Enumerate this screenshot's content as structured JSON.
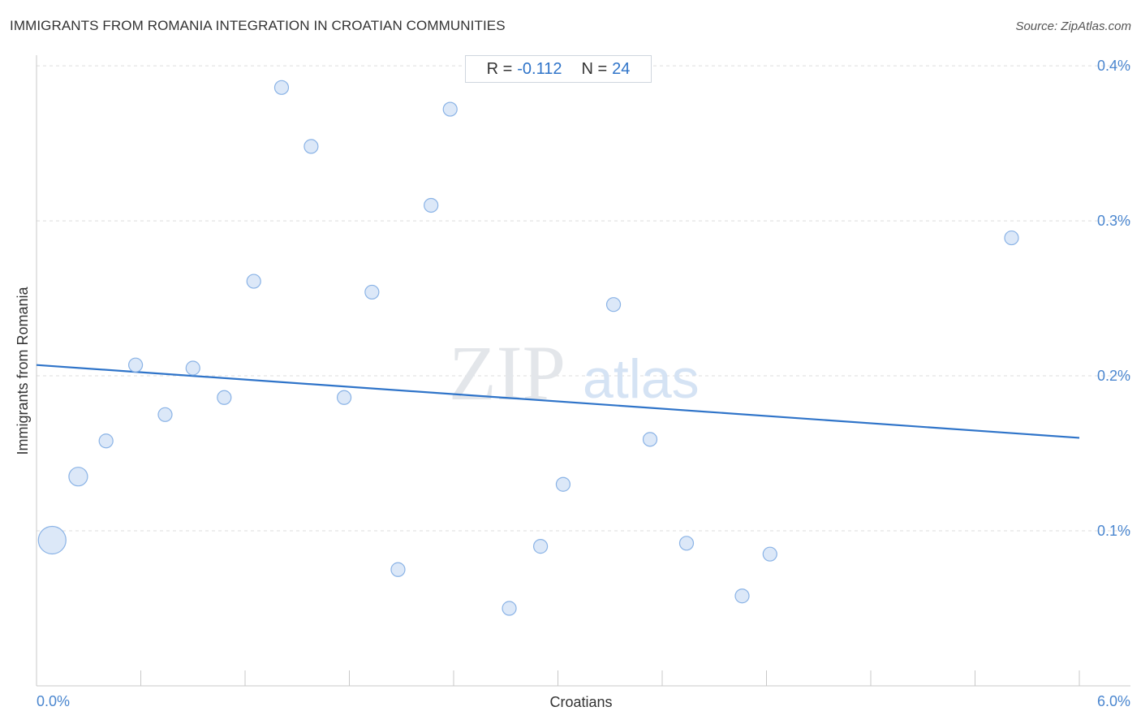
{
  "header": {
    "title": "IMMIGRANTS FROM ROMANIA INTEGRATION IN CROATIAN COMMUNITIES",
    "source": "Source: ZipAtlas.com"
  },
  "stats": {
    "r_label": "R =",
    "r_value": "-0.112",
    "n_label": "N =",
    "n_value": "24"
  },
  "watermark": {
    "zip": "ZIP",
    "atlas": "atlas"
  },
  "colors": {
    "point_fill": "#dce8f8",
    "point_stroke": "#8ab3e6",
    "trend_line": "#2f74c9",
    "axis_label": "#4a86cf",
    "gridline": "#dddddd"
  },
  "chart_data": {
    "type": "scatter",
    "title": "IMMIGRANTS FROM ROMANIA INTEGRATION IN CROATIAN COMMUNITIES",
    "xlabel": "Croatians",
    "ylabel": "Immigrants from Romania",
    "xlim": [
      0.0,
      6.0
    ],
    "ylim": [
      0.0,
      0.41
    ],
    "x_ticks": [
      {
        "value": 0.0,
        "label": "0.0%"
      },
      {
        "value": 6.0,
        "label": "6.0%"
      }
    ],
    "y_ticks": [
      {
        "value": 0.1,
        "label": "0.1%"
      },
      {
        "value": 0.2,
        "label": "0.2%"
      },
      {
        "value": 0.3,
        "label": "0.3%"
      },
      {
        "value": 0.4,
        "label": "0.4%"
      }
    ],
    "grid": true,
    "points": [
      {
        "x": 0.09,
        "y": 0.094,
        "size": 3
      },
      {
        "x": 0.24,
        "y": 0.135,
        "size": 2
      },
      {
        "x": 0.4,
        "y": 0.158,
        "size": 1
      },
      {
        "x": 0.57,
        "y": 0.207,
        "size": 1
      },
      {
        "x": 0.74,
        "y": 0.175,
        "size": 1
      },
      {
        "x": 0.9,
        "y": 0.205,
        "size": 1
      },
      {
        "x": 1.08,
        "y": 0.186,
        "size": 1
      },
      {
        "x": 1.25,
        "y": 0.261,
        "size": 1
      },
      {
        "x": 1.41,
        "y": 0.386,
        "size": 1
      },
      {
        "x": 1.58,
        "y": 0.348,
        "size": 1
      },
      {
        "x": 1.77,
        "y": 0.186,
        "size": 1
      },
      {
        "x": 1.93,
        "y": 0.254,
        "size": 1
      },
      {
        "x": 2.08,
        "y": 0.075,
        "size": 1
      },
      {
        "x": 2.27,
        "y": 0.31,
        "size": 1
      },
      {
        "x": 2.38,
        "y": 0.372,
        "size": 1
      },
      {
        "x": 2.72,
        "y": 0.05,
        "size": 1
      },
      {
        "x": 2.9,
        "y": 0.09,
        "size": 1
      },
      {
        "x": 3.03,
        "y": 0.13,
        "size": 1
      },
      {
        "x": 3.32,
        "y": 0.246,
        "size": 1
      },
      {
        "x": 3.53,
        "y": 0.159,
        "size": 1
      },
      {
        "x": 3.74,
        "y": 0.092,
        "size": 1
      },
      {
        "x": 4.06,
        "y": 0.058,
        "size": 1
      },
      {
        "x": 4.22,
        "y": 0.085,
        "size": 1
      },
      {
        "x": 5.61,
        "y": 0.289,
        "size": 1
      }
    ],
    "trend_line": {
      "x": [
        0.0,
        6.0
      ],
      "y": [
        0.207,
        0.16
      ]
    }
  }
}
